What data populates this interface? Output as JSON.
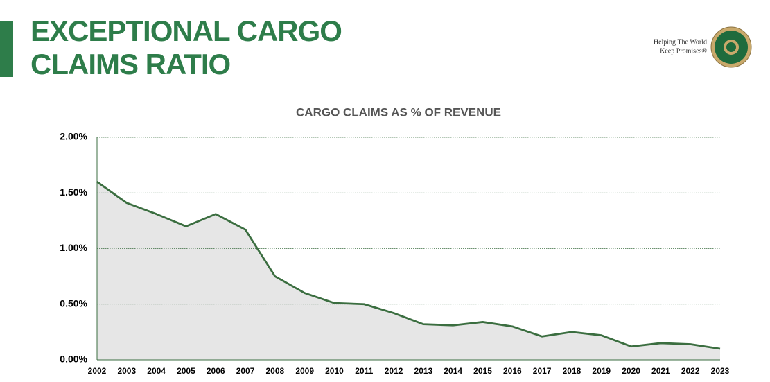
{
  "header": {
    "title": [
      "EXCEPTIONAL CARGO",
      "CLAIMS RATIO"
    ],
    "tagline": [
      "Helping The World",
      "Keep Promises®"
    ]
  },
  "chart_data": {
    "type": "area",
    "title": "CARGO CLAIMS AS % OF REVENUE",
    "categories": [
      "2002",
      "2003",
      "2004",
      "2005",
      "2006",
      "2007",
      "2008",
      "2009",
      "2010",
      "2011",
      "2012",
      "2013",
      "2014",
      "2015",
      "2016",
      "2017",
      "2018",
      "2019",
      "2020",
      "2021",
      "2022",
      "2023"
    ],
    "values": [
      1.6,
      1.41,
      1.31,
      1.2,
      1.31,
      1.17,
      0.75,
      0.6,
      0.51,
      0.5,
      0.42,
      0.32,
      0.31,
      0.34,
      0.3,
      0.21,
      0.25,
      0.22,
      0.12,
      0.15,
      0.14,
      0.1
    ],
    "color": "#3b6e40",
    "fill": "#e6e6e6",
    "ylim": [
      0,
      2
    ],
    "yticks": [
      {
        "value": 0,
        "label": "0.00%"
      },
      {
        "value": 0.5,
        "label": "0.50%"
      },
      {
        "value": 1,
        "label": "1.00%"
      },
      {
        "value": 1.5,
        "label": "1.50%"
      },
      {
        "value": 2,
        "label": "2.00%"
      }
    ],
    "grid": true
  }
}
